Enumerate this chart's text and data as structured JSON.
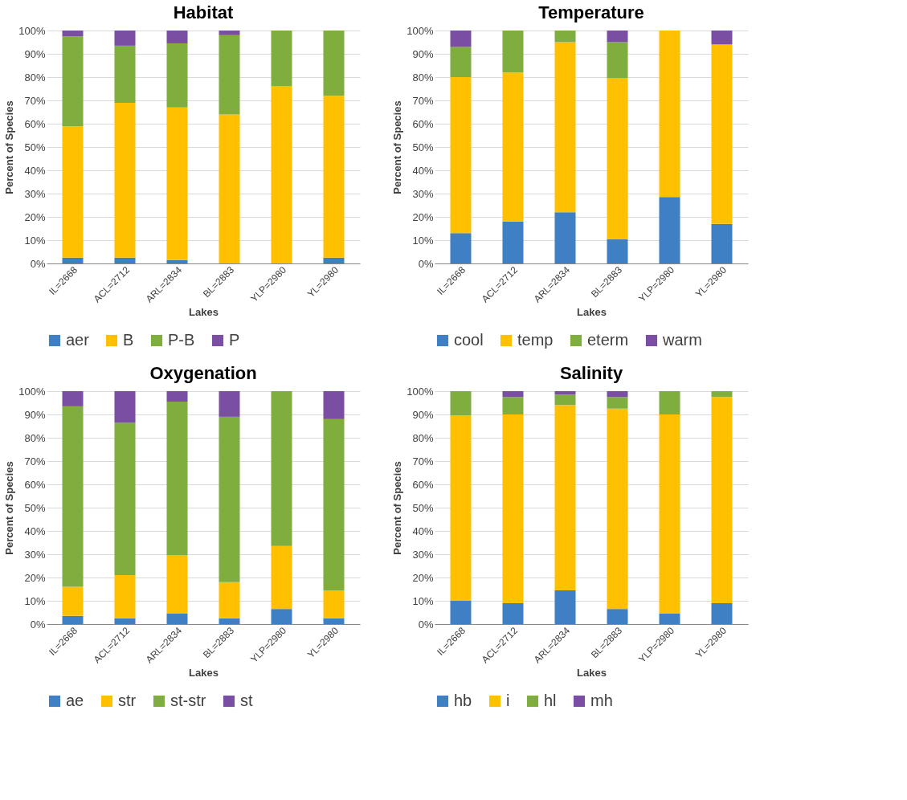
{
  "chart_data": [
    {
      "type": "bar",
      "title": "Habitat",
      "xlabel": "Lakes",
      "ylabel": "Percent of Species",
      "stacked": true,
      "grid": "y",
      "legend": "bottom",
      "categories": [
        "IL=2668",
        "ACL=2712",
        "ARL=2834",
        "BL=2883",
        "YLP=2980",
        "YL=2980"
      ],
      "ylim": [
        0,
        100
      ],
      "yticks": [
        {
          "value": 0,
          "label": "0%"
        },
        {
          "value": 10,
          "label": "10%"
        },
        {
          "value": 20,
          "label": "20%"
        },
        {
          "value": 30,
          "label": "30%"
        },
        {
          "value": 40,
          "label": "40%"
        },
        {
          "value": 50,
          "label": "50%"
        },
        {
          "value": 60,
          "label": "60%"
        },
        {
          "value": 70,
          "label": "70%"
        },
        {
          "value": 80,
          "label": "80%"
        },
        {
          "value": 90,
          "label": "90%"
        },
        {
          "value": 100,
          "label": "100%"
        }
      ],
      "series": [
        {
          "name": "aer",
          "color": "#3f7fc4",
          "values": [
            2.5,
            2.5,
            1.5,
            0,
            0,
            2.5
          ]
        },
        {
          "name": "B",
          "color": "#ffc000",
          "values": [
            56.5,
            66.5,
            65.5,
            64,
            76,
            69.5
          ]
        },
        {
          "name": "P-B",
          "color": "#7fae3e",
          "values": [
            38.5,
            24.5,
            27.5,
            34,
            24,
            28
          ]
        },
        {
          "name": "P",
          "color": "#7a4fa3",
          "values": [
            2.5,
            6.5,
            5.5,
            2,
            0,
            0
          ]
        }
      ]
    },
    {
      "type": "bar",
      "title": "Temperature",
      "xlabel": "Lakes",
      "ylabel": "Percent of Species",
      "stacked": true,
      "grid": "y",
      "legend": "bottom",
      "categories": [
        "IL=2668",
        "ACL=2712",
        "ARL=2834",
        "BL=2883",
        "YLP=2980",
        "YL=2980"
      ],
      "ylim": [
        0,
        100
      ],
      "yticks": [
        {
          "value": 0,
          "label": "0%"
        },
        {
          "value": 10,
          "label": "10%"
        },
        {
          "value": 20,
          "label": "20%"
        },
        {
          "value": 30,
          "label": "30%"
        },
        {
          "value": 40,
          "label": "40%"
        },
        {
          "value": 50,
          "label": "50%"
        },
        {
          "value": 60,
          "label": "60%"
        },
        {
          "value": 70,
          "label": "70%"
        },
        {
          "value": 80,
          "label": "80%"
        },
        {
          "value": 90,
          "label": "90%"
        },
        {
          "value": 100,
          "label": "100%"
        }
      ],
      "series": [
        {
          "name": "cool",
          "color": "#3f7fc4",
          "values": [
            13,
            18,
            22,
            10.5,
            28.5,
            17
          ]
        },
        {
          "name": "temp",
          "color": "#ffc000",
          "values": [
            67,
            64,
            73,
            69,
            71.5,
            77
          ]
        },
        {
          "name": "eterm",
          "color": "#7fae3e",
          "values": [
            13,
            18,
            5,
            15.5,
            0,
            0
          ]
        },
        {
          "name": "warm",
          "color": "#7a4fa3",
          "values": [
            7,
            0,
            0,
            5,
            0,
            6
          ]
        }
      ]
    },
    {
      "type": "bar",
      "title": "Oxygenation",
      "xlabel": "Lakes",
      "ylabel": "Percent of Species",
      "stacked": true,
      "grid": "y",
      "legend": "bottom",
      "categories": [
        "IL=2668",
        "ACL=2712",
        "ARL=2834",
        "BL=2883",
        "YLP=2980",
        "YL=2980"
      ],
      "ylim": [
        0,
        100
      ],
      "yticks": [
        {
          "value": 0,
          "label": "0%"
        },
        {
          "value": 10,
          "label": "10%"
        },
        {
          "value": 20,
          "label": "20%"
        },
        {
          "value": 30,
          "label": "30%"
        },
        {
          "value": 40,
          "label": "40%"
        },
        {
          "value": 50,
          "label": "50%"
        },
        {
          "value": 60,
          "label": "60%"
        },
        {
          "value": 70,
          "label": "70%"
        },
        {
          "value": 80,
          "label": "80%"
        },
        {
          "value": 90,
          "label": "90%"
        },
        {
          "value": 100,
          "label": "100%"
        }
      ],
      "series": [
        {
          "name": "ae",
          "color": "#3f7fc4",
          "values": [
            3.5,
            2.5,
            4.5,
            2.5,
            6.5,
            2.5
          ]
        },
        {
          "name": "str",
          "color": "#ffc000",
          "values": [
            12.5,
            18.5,
            25,
            15.5,
            27,
            12
          ]
        },
        {
          "name": "st-str",
          "color": "#7fae3e",
          "values": [
            77.5,
            65.5,
            66,
            71,
            66.5,
            73.5
          ]
        },
        {
          "name": "st",
          "color": "#7a4fa3",
          "values": [
            6.5,
            13.5,
            4.5,
            11,
            0,
            12
          ]
        }
      ]
    },
    {
      "type": "bar",
      "title": "Salinity",
      "xlabel": "Lakes",
      "ylabel": "Percent of Species",
      "stacked": true,
      "grid": "y",
      "legend": "bottom",
      "categories": [
        "IL=2668",
        "ACL=2712",
        "ARL=2834",
        "BL=2883",
        "YLP=2980",
        "YL=2980"
      ],
      "ylim": [
        0,
        100
      ],
      "yticks": [
        {
          "value": 0,
          "label": "0%"
        },
        {
          "value": 10,
          "label": "10%"
        },
        {
          "value": 20,
          "label": "20%"
        },
        {
          "value": 30,
          "label": "30%"
        },
        {
          "value": 40,
          "label": "40%"
        },
        {
          "value": 50,
          "label": "50%"
        },
        {
          "value": 60,
          "label": "60%"
        },
        {
          "value": 70,
          "label": "70%"
        },
        {
          "value": 80,
          "label": "80%"
        },
        {
          "value": 90,
          "label": "90%"
        },
        {
          "value": 100,
          "label": "100%"
        }
      ],
      "series": [
        {
          "name": "hb",
          "color": "#3f7fc4",
          "values": [
            10,
            9,
            14.5,
            6.5,
            4.5,
            9
          ]
        },
        {
          "name": "i",
          "color": "#ffc000",
          "values": [
            79.5,
            81,
            79.5,
            86,
            85.5,
            88.5
          ]
        },
        {
          "name": "hl",
          "color": "#7fae3e",
          "values": [
            10.5,
            7.5,
            4.5,
            5,
            10,
            2.5
          ]
        },
        {
          "name": "mh",
          "color": "#7a4fa3",
          "values": [
            0,
            2.5,
            1.5,
            2.5,
            0,
            0
          ]
        }
      ]
    }
  ]
}
